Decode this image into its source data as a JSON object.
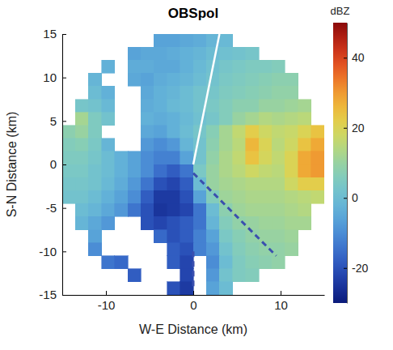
{
  "chart_data": {
    "type": "heatmap",
    "title": "OBSpol",
    "x_label": "W-E Distance (km)",
    "y_label": "S-N Distance (km)",
    "xlim": [
      -15,
      15
    ],
    "ylim": [
      -15,
      15
    ],
    "xticks": [
      -10,
      0,
      10
    ],
    "yticks": [
      -15,
      -10,
      -5,
      0,
      5,
      10,
      15
    ],
    "x": [
      -14.25,
      -12.75,
      -11.25,
      -9.75,
      -8.25,
      -6.75,
      -5.25,
      -3.75,
      -2.25,
      -0.75,
      0.75,
      2.25,
      3.75,
      5.25,
      6.75,
      8.25,
      9.75,
      11.25,
      12.75,
      14.25
    ],
    "y": [
      14.25,
      12.75,
      11.25,
      9.75,
      8.25,
      6.75,
      5.25,
      3.75,
      2.25,
      0.75,
      -0.75,
      -2.25,
      -3.75,
      -5.25,
      -6.75,
      -8.25,
      -9.75,
      -11.25,
      -12.75,
      -14.25
    ],
    "cells": [
      [
        null,
        null,
        null,
        null,
        null,
        null,
        null,
        -6,
        -6,
        -5,
        -4,
        -2,
        -1,
        null,
        null,
        null,
        null,
        null,
        null,
        null
      ],
      [
        null,
        null,
        null,
        null,
        null,
        -6,
        -5,
        -5,
        -4,
        -3,
        -2,
        0,
        1,
        2,
        3,
        null,
        null,
        null,
        null,
        null
      ],
      [
        null,
        null,
        null,
        -3,
        null,
        -4,
        -4,
        -5,
        -5,
        -3,
        -1,
        1,
        3,
        4,
        5,
        5,
        6,
        null,
        null,
        null
      ],
      [
        null,
        null,
        -2,
        null,
        null,
        -5,
        -6,
        -4,
        -3,
        -2,
        0,
        2,
        4,
        5,
        6,
        7,
        8,
        8,
        null,
        null
      ],
      [
        null,
        null,
        0,
        -3,
        null,
        null,
        -5,
        -3,
        -2,
        0,
        2,
        3,
        5,
        6,
        7,
        8,
        9,
        9,
        null,
        null
      ],
      [
        null,
        3,
        2,
        -1,
        null,
        null,
        -4,
        -3,
        -1,
        0,
        2,
        4,
        6,
        8,
        8,
        10,
        10,
        11,
        12,
        null
      ],
      [
        null,
        12,
        5,
        2,
        null,
        null,
        -3,
        -4,
        -3,
        -1,
        1,
        3,
        6,
        10,
        12,
        14,
        13,
        14,
        15,
        null
      ],
      [
        8,
        10,
        5,
        null,
        null,
        null,
        -5,
        -6,
        -3,
        0,
        3,
        7,
        12,
        16,
        22,
        18,
        16,
        17,
        20,
        24
      ],
      [
        6,
        7,
        4,
        -2,
        null,
        null,
        -8,
        -10,
        -8,
        -2,
        2,
        8,
        12,
        15,
        26,
        20,
        15,
        18,
        24,
        28
      ],
      [
        5,
        5,
        3,
        0,
        -3,
        -6,
        -10,
        -12,
        -12,
        -6,
        2,
        9,
        13,
        16,
        24,
        19,
        16,
        20,
        28,
        30
      ],
      [
        4,
        4,
        2,
        0,
        -3,
        -6,
        -10,
        -15,
        -18,
        -14,
        4,
        10,
        13,
        15,
        18,
        16,
        15,
        20,
        28,
        30
      ],
      [
        3,
        3,
        2,
        -1,
        -4,
        -8,
        -14,
        -20,
        -22,
        -18,
        0,
        10,
        12,
        13,
        14,
        14,
        14,
        18,
        22,
        22
      ],
      [
        2,
        2,
        0,
        -3,
        -6,
        -10,
        -18,
        -24,
        -24,
        -20,
        -6,
        6,
        11,
        12,
        13,
        13,
        13,
        14,
        15,
        16
      ],
      [
        null,
        0,
        -2,
        -5,
        -8,
        -14,
        -20,
        -25,
        -24,
        -22,
        -14,
        0,
        8,
        11,
        12,
        12,
        12,
        13,
        14,
        null
      ],
      [
        null,
        -2,
        -5,
        -8,
        null,
        null,
        -20,
        -22,
        -20,
        -18,
        -14,
        -2,
        6,
        9,
        10,
        11,
        11,
        12,
        12,
        null
      ],
      [
        null,
        null,
        -6,
        null,
        null,
        null,
        null,
        -16,
        -20,
        -18,
        -12,
        -6,
        4,
        7,
        9,
        10,
        10,
        11,
        null,
        null
      ],
      [
        null,
        null,
        -10,
        null,
        null,
        null,
        null,
        null,
        -18,
        -20,
        -12,
        -8,
        2,
        6,
        8,
        9,
        9,
        10,
        null,
        null
      ],
      [
        null,
        null,
        null,
        -14,
        -16,
        null,
        null,
        null,
        -18,
        -22,
        null,
        -10,
        0,
        5,
        7,
        8,
        9,
        null,
        null,
        null
      ],
      [
        null,
        null,
        null,
        null,
        null,
        -18,
        null,
        null,
        null,
        -22,
        null,
        -8,
        2,
        5,
        6,
        null,
        null,
        null,
        null,
        null
      ],
      [
        null,
        null,
        null,
        null,
        null,
        null,
        null,
        null,
        -20,
        -24,
        null,
        -6,
        0,
        null,
        null,
        null,
        null,
        null,
        null,
        null
      ]
    ],
    "colorbar": {
      "label": "dBZ",
      "range": [
        -30,
        50
      ],
      "ticks": [
        -20,
        0,
        20,
        40
      ]
    },
    "lines": [
      {
        "x": [
          0,
          3
        ],
        "y": [
          0,
          15
        ],
        "color": "#ffffff",
        "line_style": "solid"
      },
      {
        "x": [
          0,
          9.5
        ],
        "y": [
          -1,
          -10.5
        ],
        "color": "#3a4fae",
        "line_style": "dashed"
      },
      {
        "x": [
          0,
          0
        ],
        "y": [
          -10,
          -14
        ],
        "color": "#3a4fae",
        "line_style": "dashed"
      }
    ]
  }
}
